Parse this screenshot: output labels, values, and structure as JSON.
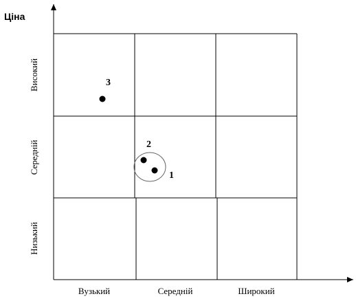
{
  "axis": {
    "y_label": "Ціна"
  },
  "columns": [
    "Вузький",
    "Середній",
    "Широкий"
  ],
  "rows": [
    "Високий",
    "Середній",
    "Низький"
  ],
  "points": [
    {
      "label": "1"
    },
    {
      "label": "2"
    },
    {
      "label": "3"
    }
  ]
}
